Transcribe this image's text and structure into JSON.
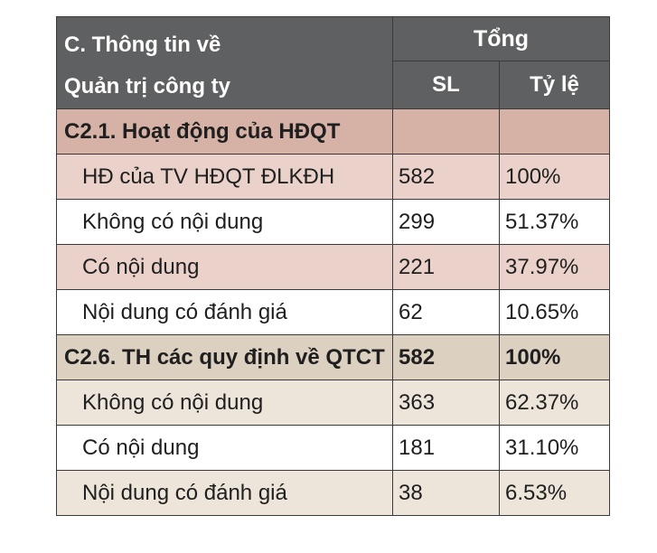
{
  "table": {
    "header": {
      "title_line1": "C. Thông tin về",
      "title_line2": "Quản trị công ty",
      "group": "Tổng",
      "col_sl": "SL",
      "col_ratio": "Tỷ lệ"
    },
    "section1": {
      "label": "C2.1. Hoạt động của HĐQT",
      "sl": "",
      "ratio": "",
      "rows": [
        {
          "label": "HĐ của TV HĐQT ĐLKĐH",
          "sl": "582",
          "ratio": "100%"
        },
        {
          "label": "Không có nội dung",
          "sl": "299",
          "ratio": "51.37%"
        },
        {
          "label": "Có nội dung",
          "sl": "221",
          "ratio": "37.97%"
        },
        {
          "label": "Nội dung có đánh giá",
          "sl": "62",
          "ratio": "10.65%"
        }
      ]
    },
    "section2": {
      "label": "C2.6. TH các quy định về QTCT",
      "sl": "582",
      "ratio": "100%",
      "rows": [
        {
          "label": "Không có nội dung",
          "sl": "363",
          "ratio": "62.37%"
        },
        {
          "label": "Có nội dung",
          "sl": "181",
          "ratio": "31.10%"
        },
        {
          "label": "Nội dung có đánh giá",
          "sl": "38",
          "ratio": "6.53%"
        }
      ]
    }
  },
  "colors": {
    "header_bg": "#5f6062",
    "section1_bg": "#d6b2a6",
    "section1_alt_row": "#ead2cb",
    "section2_bg": "#dcd0c1",
    "section2_alt_row": "#ede4da"
  }
}
